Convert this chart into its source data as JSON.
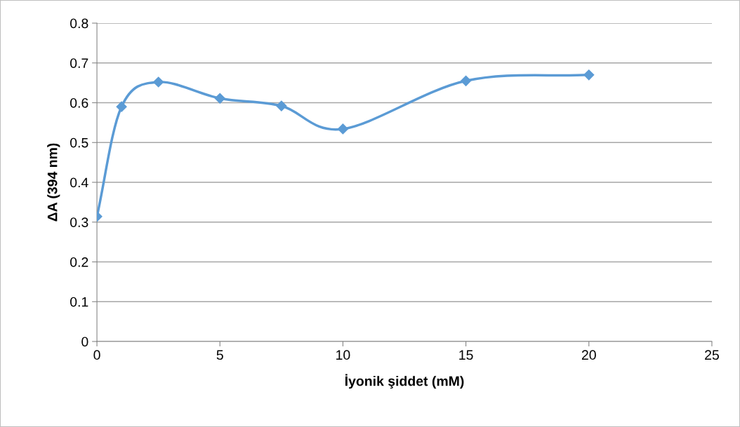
{
  "chart_data": {
    "type": "line",
    "xlabel": "İyonik şiddet (mM)",
    "ylabel": "ΔA (394 nm)",
    "x": [
      0,
      1,
      2.5,
      5,
      7.5,
      10,
      15,
      20
    ],
    "series": [
      {
        "color": "#5b9bd5",
        "values": [
          0.314,
          0.59,
          0.652,
          0.611,
          0.592,
          0.534,
          0.655,
          0.67
        ]
      }
    ],
    "xlim": [
      0,
      25
    ],
    "xticks": [
      0,
      5,
      10,
      15,
      20,
      25
    ],
    "ylim": [
      0,
      0.8
    ],
    "yticks": [
      {
        "value": 0,
        "label": "0"
      },
      0.1,
      0.2,
      0.3,
      0.4,
      0.5,
      0.6,
      0.7,
      0.8
    ],
    "grid": "y",
    "marker": "diamond",
    "line_style": "solid",
    "legend": false
  }
}
